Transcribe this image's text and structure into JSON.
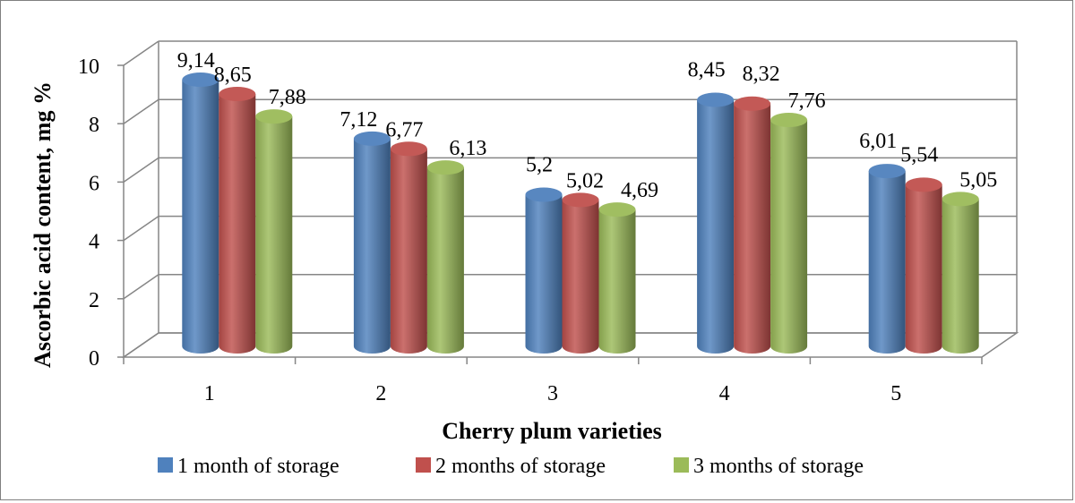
{
  "chart_data": {
    "type": "bar",
    "title": "",
    "xlabel": "Cherry plum varieties",
    "ylabel": "Ascorbic acid content, mg %",
    "categories": [
      "1",
      "2",
      "3",
      "4",
      "5"
    ],
    "ylim": [
      0,
      10
    ],
    "yticks": [
      "0",
      "2",
      "4",
      "6",
      "8",
      "10"
    ],
    "grid": true,
    "legend_position": "bottom",
    "series": [
      {
        "name": "1 month of storage",
        "color": "#4f81bd",
        "values": [
          9.14,
          7.12,
          5.2,
          8.45,
          6.01
        ],
        "labels": [
          "9,14",
          "7,12",
          "5,2",
          "8,45",
          "6,01"
        ]
      },
      {
        "name": "2 months of storage",
        "color": "#c0504d",
        "values": [
          8.65,
          6.77,
          5.02,
          8.32,
          5.54
        ],
        "labels": [
          "8,65",
          "6,77",
          "5,02",
          "8,32",
          "5,54"
        ]
      },
      {
        "name": "3 months of storage",
        "color": "#9bbb59",
        "values": [
          7.88,
          6.13,
          4.69,
          7.76,
          5.05
        ],
        "labels": [
          "7,88",
          "6,13",
          "4,69",
          "7,76",
          "5,05"
        ]
      }
    ]
  }
}
